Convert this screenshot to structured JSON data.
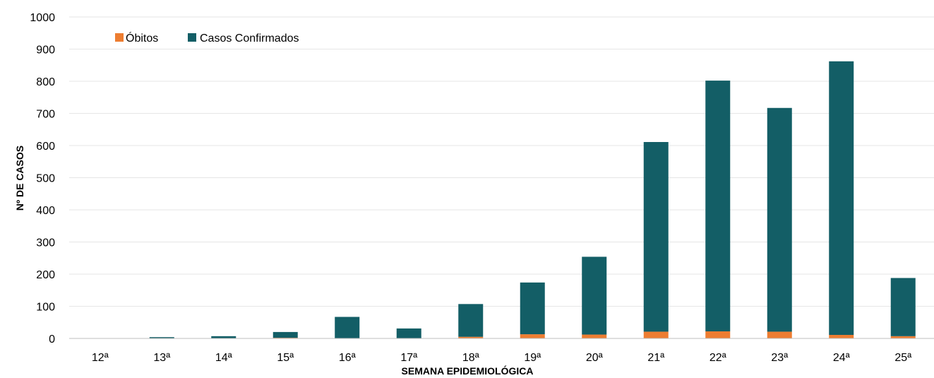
{
  "chart_data": {
    "type": "bar",
    "stacked": true,
    "title": "",
    "xlabel": "SEMANA EPIDEMIOLÓGICA",
    "ylabel": "Nº DE CASOS",
    "ylim": [
      0,
      1000
    ],
    "yticks": [
      0,
      100,
      200,
      300,
      400,
      500,
      600,
      700,
      800,
      900,
      1000
    ],
    "grid": true,
    "legend_position": "top-left",
    "categories": [
      "12ª",
      "13ª",
      "14ª",
      "15ª",
      "16ª",
      "17ª",
      "18ª",
      "19ª",
      "20ª",
      "21ª",
      "22ª",
      "23ª",
      "24ª",
      "25ª"
    ],
    "series": [
      {
        "name": "Óbitos",
        "color": "#ED7D31",
        "values": [
          0,
          0,
          0,
          2,
          1,
          0,
          5,
          13,
          12,
          21,
          22,
          21,
          11,
          7
        ]
      },
      {
        "name": "Casos Confirmados",
        "color": "#135E66",
        "values": [
          1,
          4,
          7,
          18,
          66,
          31,
          102,
          161,
          242,
          590,
          780,
          696,
          851,
          181
        ]
      }
    ]
  }
}
